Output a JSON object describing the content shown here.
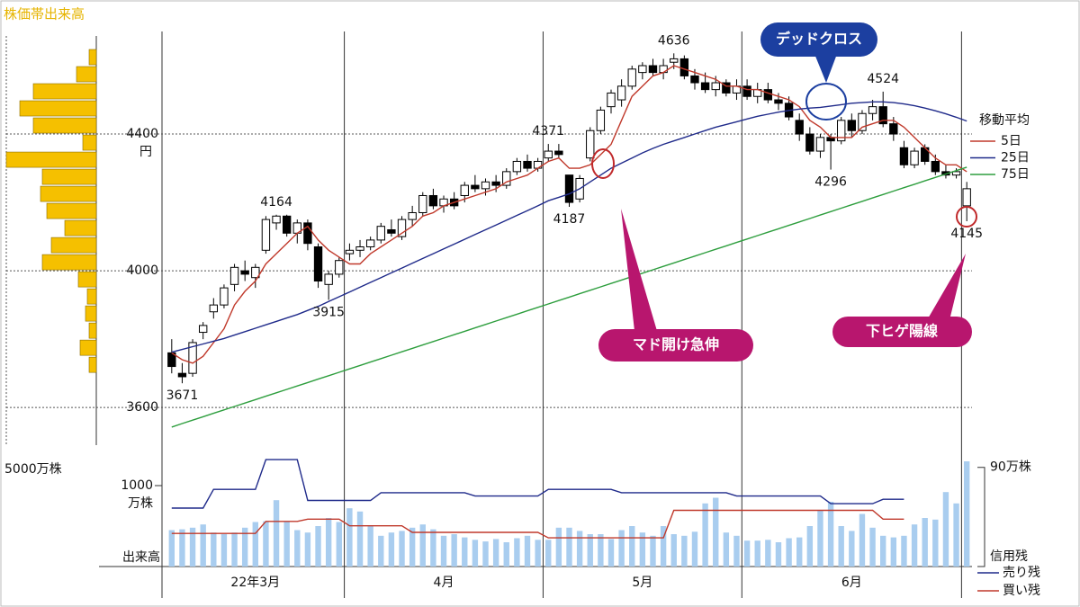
{
  "title": "株価帯出来高",
  "chart_data": [
    {
      "type": "candlestick",
      "categories": [
        "22年3月",
        "22年3月",
        "22年3月",
        "22年3月",
        "22年3月",
        "22年3月",
        "22年3月",
        "22年3月",
        "22年3月",
        "22年3月",
        "22年3月",
        "22年3月",
        "22年3月",
        "22年3月",
        "22年3月",
        "22年3月",
        "22年3月",
        "4月",
        "4月",
        "4月",
        "4月",
        "4月",
        "4月",
        "4月",
        "4月",
        "4月",
        "4月",
        "4月",
        "4月",
        "4月",
        "4月",
        "4月",
        "4月",
        "4月",
        "4月",
        "4月",
        "5月",
        "5月",
        "5月",
        "5月",
        "5月",
        "5月",
        "5月",
        "5月",
        "5月",
        "5月",
        "5月",
        "5月",
        "5月",
        "5月",
        "5月",
        "5月",
        "5月",
        "5月",
        "5月",
        "6月",
        "6月",
        "6月",
        "6月",
        "6月",
        "6月",
        "6月",
        "6月",
        "6月",
        "6月",
        "6月",
        "6月",
        "6月",
        "6月",
        "6月",
        "6月",
        "6月",
        "6月",
        "6月",
        "6月",
        "6月",
        null
      ],
      "open": [
        3760,
        3700,
        3700,
        3820,
        3880,
        3900,
        3960,
        4000,
        3980,
        4060,
        4140,
        4160,
        4110,
        4140,
        4070,
        3960,
        3990,
        4050,
        4060,
        4070,
        4090,
        4120,
        4100,
        4150,
        4170,
        4220,
        4190,
        4210,
        4220,
        4250,
        4240,
        4260,
        4250,
        4290,
        4320,
        4300,
        4330,
        4350,
        4280,
        4210,
        4330,
        4410,
        4480,
        4500,
        4540,
        4580,
        4600,
        4580,
        4610,
        4620,
        4570,
        4550,
        4530,
        4550,
        4520,
        4540,
        4510,
        4530,
        4500,
        4490,
        4440,
        4400,
        4350,
        4390,
        4380,
        4440,
        4410,
        4460,
        4480,
        4430,
        4360,
        4310,
        4360,
        4320,
        4290,
        4280,
        4190
      ],
      "high": [
        3800,
        3730,
        3800,
        3850,
        3920,
        3960,
        4020,
        4030,
        4020,
        4160,
        4164,
        4164,
        4150,
        4150,
        4080,
        4000,
        4040,
        4080,
        4090,
        4100,
        4140,
        4150,
        4160,
        4190,
        4230,
        4240,
        4220,
        4230,
        4260,
        4280,
        4270,
        4280,
        4300,
        4330,
        4340,
        4330,
        4371,
        4371,
        4280,
        4280,
        4420,
        4480,
        4530,
        4560,
        4600,
        4610,
        4620,
        4620,
        4636,
        4630,
        4590,
        4580,
        4570,
        4560,
        4560,
        4560,
        4550,
        4550,
        4520,
        4510,
        4460,
        4420,
        4400,
        4400,
        4450,
        4460,
        4470,
        4500,
        4524,
        4450,
        4380,
        4360,
        4370,
        4340,
        4310,
        4300,
        4260
      ],
      "low": [
        3700,
        3671,
        3690,
        3800,
        3860,
        3890,
        3940,
        3970,
        3950,
        4050,
        4120,
        4100,
        4080,
        4060,
        3950,
        3915,
        3980,
        4030,
        4040,
        4060,
        4080,
        4100,
        4090,
        4130,
        4160,
        4180,
        4170,
        4180,
        4200,
        4230,
        4220,
        4230,
        4240,
        4280,
        4290,
        4290,
        4320,
        4330,
        4187,
        4200,
        4320,
        4400,
        4460,
        4480,
        4530,
        4560,
        4570,
        4560,
        4590,
        4560,
        4530,
        4520,
        4510,
        4510,
        4500,
        4500,
        4490,
        4490,
        4470,
        4440,
        4380,
        4340,
        4330,
        4296,
        4370,
        4390,
        4400,
        4440,
        4420,
        4380,
        4300,
        4300,
        4310,
        4280,
        4270,
        4270,
        4145
      ],
      "close": [
        3720,
        3690,
        3790,
        3840,
        3900,
        3950,
        4010,
        3990,
        4010,
        4150,
        4160,
        4110,
        4140,
        4080,
        3970,
        3990,
        4030,
        4060,
        4070,
        4090,
        4130,
        4110,
        4150,
        4170,
        4220,
        4190,
        4210,
        4190,
        4250,
        4240,
        4260,
        4250,
        4290,
        4320,
        4300,
        4320,
        4350,
        4340,
        4200,
        4270,
        4410,
        4470,
        4520,
        4540,
        4590,
        4600,
        4580,
        4600,
        4620,
        4570,
        4550,
        4530,
        4550,
        4520,
        4540,
        4510,
        4530,
        4500,
        4490,
        4450,
        4400,
        4350,
        4390,
        4380,
        4440,
        4410,
        4460,
        4480,
        4430,
        4400,
        4310,
        4350,
        4320,
        4290,
        4280,
        4290,
        4240
      ],
      "up_color": "#ffffff",
      "down_color": "#000000",
      "legend_title": "移動平均",
      "series": [
        {
          "name": "5日",
          "color": "#c0392b",
          "values": [
            3760,
            3740,
            3730,
            3750,
            3790,
            3830,
            3900,
            3940,
            3970,
            4020,
            4050,
            4080,
            4110,
            4130,
            4090,
            4060,
            4040,
            4020,
            4020,
            4050,
            4070,
            4090,
            4110,
            4130,
            4160,
            4170,
            4190,
            4200,
            4210,
            4220,
            4230,
            4240,
            4260,
            4270,
            4280,
            4300,
            4320,
            4330,
            4300,
            4300,
            4310,
            4340,
            4370,
            4440,
            4510,
            4540,
            4570,
            4580,
            4600,
            4590,
            4580,
            4570,
            4560,
            4540,
            4540,
            4530,
            4530,
            4520,
            4510,
            4500,
            4480,
            4440,
            4420,
            4390,
            4390,
            4390,
            4420,
            4430,
            4440,
            4440,
            4420,
            4390,
            4360,
            4330,
            4310,
            4310,
            4290
          ]
        },
        {
          "name": "25日",
          "color": "#1f2a8a",
          "values": [
            3762,
            3770,
            3778,
            3786,
            3794,
            3802,
            3812,
            3822,
            3832,
            3842,
            3852,
            3862,
            3872,
            3884,
            3896,
            3910,
            3924,
            3938,
            3952,
            3966,
            3980,
            3994,
            4008,
            4022,
            4036,
            4050,
            4064,
            4078,
            4092,
            4106,
            4120,
            4134,
            4148,
            4162,
            4176,
            4190,
            4205,
            4215,
            4225,
            4240,
            4260,
            4280,
            4300,
            4315,
            4330,
            4345,
            4358,
            4370,
            4380,
            4390,
            4400,
            4410,
            4420,
            4428,
            4436,
            4444,
            4452,
            4458,
            4464,
            4469,
            4473,
            4476,
            4478,
            4482,
            4486,
            4490,
            4492,
            4494,
            4494,
            4492,
            4488,
            4483,
            4476,
            4468,
            4459,
            4449,
            4438
          ]
        },
        {
          "name": "75日",
          "color": "#2e9e3e",
          "values": [
            3543,
            3553,
            3563,
            3573,
            3583,
            3593,
            3603,
            3613,
            3623,
            3633,
            3643,
            3653,
            3663,
            3673,
            3683,
            3693,
            3703,
            3713,
            3723,
            3733,
            3743,
            3753,
            3763,
            3773,
            3783,
            3793,
            3803,
            3813,
            3823,
            3833,
            3843,
            3853,
            3863,
            3873,
            3883,
            3893,
            3903,
            3913,
            3923,
            3933,
            3943,
            3953,
            3963,
            3973,
            3983,
            3993,
            4003,
            4013,
            4023,
            4033,
            4043,
            4053,
            4063,
            4073,
            4083,
            4093,
            4103,
            4113,
            4123,
            4133,
            4143,
            4153,
            4163,
            4173,
            4183,
            4193,
            4203,
            4213,
            4223,
            4233,
            4243,
            4253,
            4263,
            4273,
            4283,
            4293,
            4303
          ]
        }
      ],
      "ylim": [
        3490,
        4700
      ],
      "yticks": [
        3600,
        4000,
        4400
      ],
      "y_unit": "円",
      "annotations": [
        "デッドクロス",
        "マド開け急伸",
        "下ヒゲ陽線"
      ]
    },
    {
      "type": "bar",
      "values": [
        450,
        460,
        480,
        520,
        420,
        400,
        420,
        480,
        550,
        560,
        820,
        560,
        450,
        420,
        500,
        600,
        550,
        720,
        680,
        500,
        380,
        420,
        440,
        480,
        520,
        460,
        380,
        400,
        360,
        330,
        310,
        340,
        300,
        350,
        380,
        330,
        330,
        480,
        480,
        440,
        400,
        400,
        340,
        450,
        500,
        420,
        380,
        500,
        400,
        380,
        430,
        780,
        850,
        420,
        380,
        320,
        320,
        330,
        300,
        350,
        360,
        500,
        700,
        800,
        500,
        440,
        650,
        480,
        380,
        360,
        380,
        520,
        600,
        580,
        920,
        780,
        1300
      ],
      "color": "#a9cdef",
      "ylim": [
        0,
        1389
      ],
      "yticks": [
        1000
      ],
      "y_unit": "万株",
      "ylabel": "出来高",
      "legend_title": "信用残",
      "series": [
        {
          "name": "売り残",
          "color": "#1f2a8a",
          "axis": "y2",
          "values": [
            53,
            53,
            53,
            53,
            70,
            70,
            70,
            70,
            70,
            97,
            97,
            97,
            97,
            60,
            60,
            60,
            60,
            60,
            60,
            60,
            67,
            67,
            67,
            67,
            67,
            67,
            67,
            67,
            67,
            64,
            64,
            64,
            64,
            64,
            64,
            64,
            70,
            70,
            70,
            70,
            70,
            70,
            70,
            67,
            67,
            67,
            67,
            67,
            67,
            67,
            67,
            67,
            67,
            67,
            64,
            64,
            64,
            64,
            64,
            64,
            64,
            64,
            64,
            57,
            57,
            57,
            57,
            57,
            61,
            61,
            61,
            null,
            null,
            null,
            null,
            null,
            null
          ]
        },
        {
          "name": "買い残",
          "color": "#c0392b",
          "axis": "y2",
          "values": [
            30,
            30,
            30,
            30,
            30,
            30,
            30,
            30,
            30,
            41,
            41,
            41,
            41,
            43,
            43,
            43,
            43,
            37,
            37,
            37,
            37,
            37,
            37,
            31,
            31,
            31,
            31,
            31,
            31,
            31,
            31,
            31,
            31,
            31,
            31,
            31,
            26,
            26,
            26,
            26,
            26,
            26,
            26,
            26,
            26,
            26,
            26,
            26,
            51,
            51,
            51,
            51,
            51,
            51,
            51,
            51,
            51,
            51,
            51,
            51,
            51,
            51,
            51,
            51,
            51,
            51,
            51,
            51,
            43,
            43,
            43,
            null,
            null,
            null,
            null,
            null,
            null
          ]
        }
      ],
      "y2lim": [
        0,
        102
      ],
      "y2ticks": [
        {
          "value": 90,
          "label": "90万株"
        }
      ]
    },
    {
      "type": "histogram",
      "orientation": "horizontal",
      "bins": [
        3700,
        3750,
        3800,
        3850,
        3900,
        3950,
        4000,
        4050,
        4100,
        4150,
        4200,
        4250,
        4300,
        4350,
        4400,
        4450,
        4500,
        4550,
        4600,
        4650
      ],
      "values": [
        400,
        900,
        400,
        600,
        500,
        1000,
        3000,
        2500,
        1750,
        2750,
        3100,
        3000,
        5000,
        750,
        3500,
        4250,
        3500,
        1100,
        400
      ],
      "color": "#f5c000",
      "xlim": [
        0,
        5000
      ],
      "xticks": [
        {
          "value": 5000,
          "label": "5000万株"
        }
      ]
    }
  ]
}
